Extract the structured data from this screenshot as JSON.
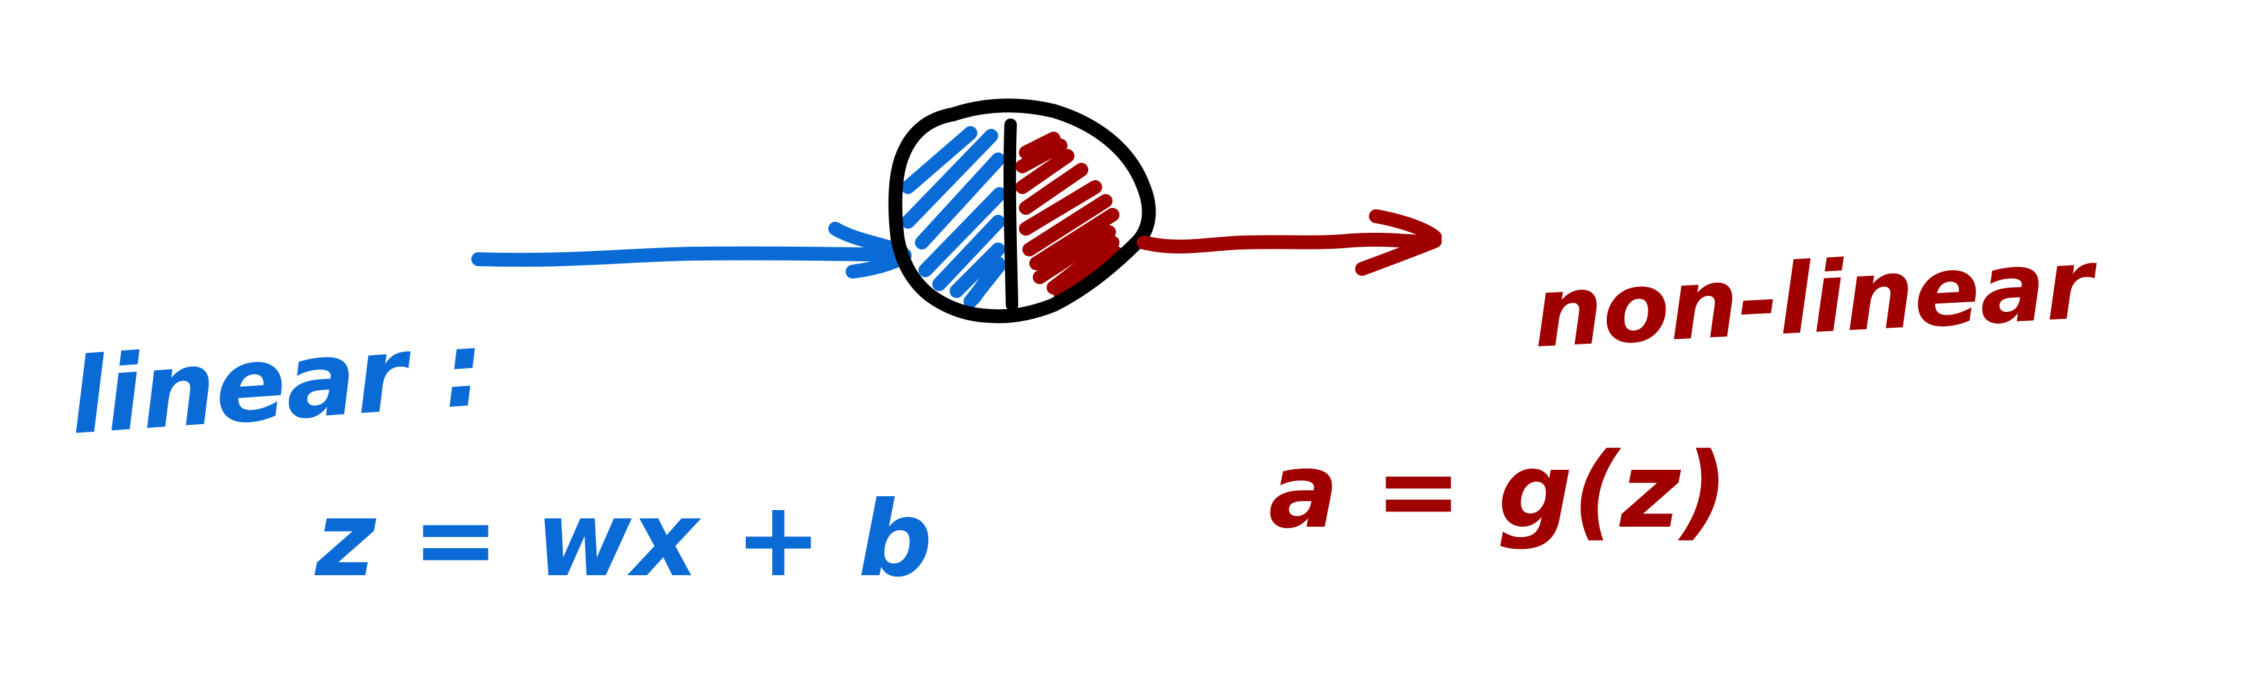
{
  "colors": {
    "linear": "#0a6bd6",
    "nonlinear": "#a00000",
    "outline": "#000000",
    "background": "#ffffff"
  },
  "labels": {
    "linear_heading": "linear :",
    "linear_equation": "z = wx + b",
    "nonlinear_heading": "non-linear",
    "nonlinear_equation": "a = g(z)"
  }
}
